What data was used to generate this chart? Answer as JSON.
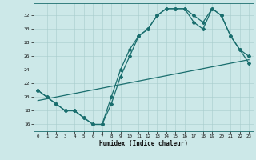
{
  "xlabel": "Humidex (Indice chaleur)",
  "bg_color": "#cce8e8",
  "line_color": "#1a6e6e",
  "xlim": [
    -0.5,
    23.5
  ],
  "ylim": [
    15.0,
    33.8
  ],
  "yticks": [
    16,
    18,
    20,
    22,
    24,
    26,
    28,
    30,
    32
  ],
  "xticks": [
    0,
    1,
    2,
    3,
    4,
    5,
    6,
    7,
    8,
    9,
    10,
    11,
    12,
    13,
    14,
    15,
    16,
    17,
    18,
    19,
    20,
    21,
    22,
    23
  ],
  "line1_x": [
    0,
    1,
    2,
    3,
    4,
    5,
    6,
    7,
    8,
    9,
    10,
    11,
    12,
    13,
    14,
    15,
    16,
    17,
    18,
    19,
    20,
    21,
    22,
    23
  ],
  "line1_y": [
    21,
    20,
    19,
    18,
    18,
    17,
    16,
    16,
    19,
    23,
    26,
    29,
    30,
    32,
    33,
    33,
    33,
    32,
    31,
    33,
    32,
    29,
    27,
    26
  ],
  "line2_x": [
    0,
    1,
    2,
    3,
    4,
    5,
    6,
    7,
    8,
    9,
    10,
    11,
    12,
    13,
    14,
    15,
    16,
    17,
    18,
    19,
    20,
    21,
    22,
    23
  ],
  "line2_y": [
    21,
    20,
    19,
    18,
    18,
    17,
    16,
    16,
    20,
    24,
    27,
    29,
    30,
    32,
    33,
    33,
    33,
    31,
    30,
    33,
    32,
    29,
    27,
    25
  ],
  "line3_x": [
    0,
    23
  ],
  "line3_y": [
    19.5,
    25.5
  ]
}
